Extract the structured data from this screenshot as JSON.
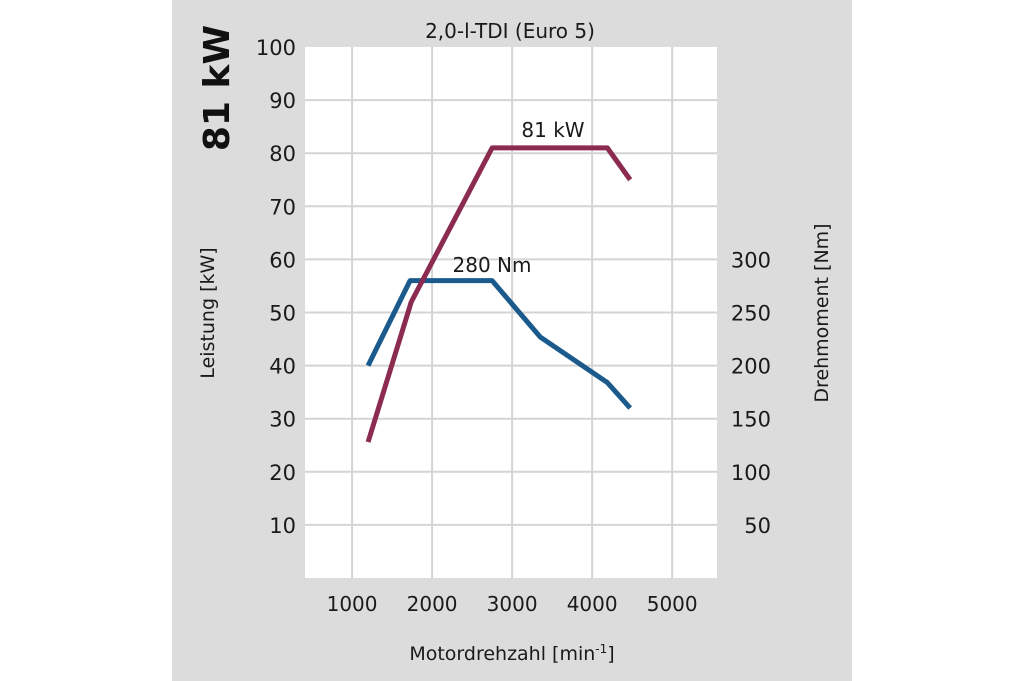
{
  "chart_data": {
    "type": "line",
    "title": "2,0-l-TDI (Euro 5)",
    "side_label": "81 kW",
    "xlabel": "Motordrehzahl [min-1]",
    "xlabel_base": "Motordrehzahl [min",
    "xlabel_sup": "-1",
    "xlabel_end": "]",
    "ylabel_left": "Leistung [kW]",
    "ylabel_right": "Drehmoment [Nm]",
    "xlim": [
      412,
      5560
    ],
    "ylim_left": [
      0,
      100
    ],
    "ylim_right": [
      0,
      500
    ],
    "x_ticks": [
      1000,
      2000,
      3000,
      4000,
      5000
    ],
    "y_ticks_left": [
      10,
      20,
      30,
      40,
      50,
      60,
      70,
      80,
      90,
      100
    ],
    "y_ticks_right": [
      50,
      100,
      150,
      200,
      250,
      300
    ],
    "grid": true,
    "series": [
      {
        "name": "81 kW",
        "axis": "left",
        "color": "#8c2b50",
        "x": [
          1200,
          1740,
          2750,
          4190,
          4475
        ],
        "y": [
          25.6,
          52,
          81,
          81,
          75
        ]
      },
      {
        "name": "280 Nm",
        "axis": "right",
        "color": "#1b5a8c",
        "x": [
          1200,
          1725,
          2750,
          3350,
          4190,
          4475
        ],
        "y": [
          200,
          280,
          280,
          227,
          184,
          160
        ]
      }
    ]
  }
}
